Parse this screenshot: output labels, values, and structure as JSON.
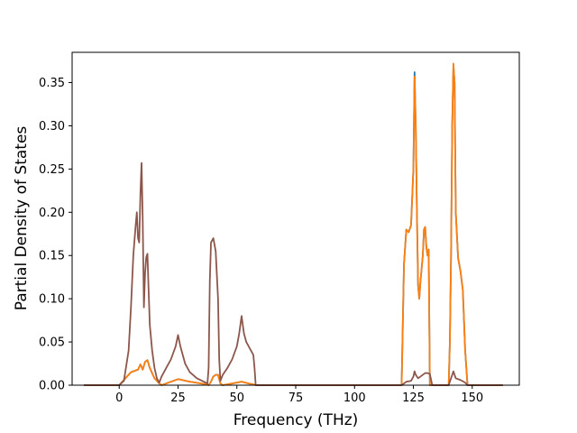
{
  "chart_data": {
    "type": "line",
    "xlabel": "Frequency (THz)",
    "ylabel": "Partial Density of States",
    "xlim": [
      -20,
      170
    ],
    "ylim": [
      0,
      0.385
    ],
    "xticks": [
      0,
      25,
      50,
      75,
      100,
      125,
      150
    ],
    "xtick_labels": [
      "0",
      "25",
      "50",
      "75",
      "100",
      "125",
      "150"
    ],
    "yticks": [
      0.0,
      0.05,
      0.1,
      0.15,
      0.2,
      0.25,
      0.3,
      0.35
    ],
    "ytick_labels": [
      "0.00",
      "0.05",
      "0.10",
      "0.15",
      "0.20",
      "0.25",
      "0.30",
      "0.35"
    ],
    "grid": false,
    "legend": "none",
    "series": [
      {
        "color": "#1f77b4",
        "points": [
          [
            -15,
            0
          ],
          [
            0,
            0
          ],
          [
            5,
            0.015
          ],
          [
            8,
            0.018
          ],
          [
            9,
            0.024
          ],
          [
            10,
            0.018
          ],
          [
            11,
            0.027
          ],
          [
            12,
            0.029
          ],
          [
            13,
            0.02
          ],
          [
            15,
            0.008
          ],
          [
            17,
            0.002
          ],
          [
            18,
            0
          ],
          [
            20,
            0.002
          ],
          [
            25,
            0.007
          ],
          [
            30,
            0.004
          ],
          [
            37,
            0.001
          ],
          [
            38,
            0
          ],
          [
            39,
            0.004
          ],
          [
            40,
            0.01
          ],
          [
            41,
            0.012
          ],
          [
            42,
            0.012
          ],
          [
            43,
            0.002
          ],
          [
            44,
            0
          ],
          [
            48,
            0.002
          ],
          [
            52,
            0.004
          ],
          [
            55,
            0.002
          ],
          [
            57,
            0.001
          ],
          [
            58,
            0
          ],
          [
            120,
            0
          ],
          [
            121,
            0.14
          ],
          [
            122,
            0.18
          ],
          [
            123,
            0.177
          ],
          [
            124,
            0.185
          ],
          [
            125,
            0.25
          ],
          [
            125.5,
            0.362
          ],
          [
            126,
            0.3
          ],
          [
            126.5,
            0.2
          ],
          [
            127,
            0.115
          ],
          [
            127.5,
            0.1
          ],
          [
            128,
            0.12
          ],
          [
            129,
            0.15
          ],
          [
            129.5,
            0.18
          ],
          [
            130,
            0.183
          ],
          [
            130.5,
            0.16
          ],
          [
            131,
            0.15
          ],
          [
            131.5,
            0.157
          ],
          [
            132,
            0
          ],
          [
            140,
            0
          ],
          [
            140.5,
            0.05
          ],
          [
            141,
            0.15
          ],
          [
            141.5,
            0.3
          ],
          [
            142,
            0.37
          ],
          [
            142.5,
            0.35
          ],
          [
            143,
            0.2
          ],
          [
            144,
            0.147
          ],
          [
            145,
            0.132
          ],
          [
            146,
            0.11
          ],
          [
            147,
            0.04
          ],
          [
            148,
            0
          ],
          [
            163,
            0
          ]
        ]
      },
      {
        "color": "#ff7f0e",
        "points": [
          [
            -15,
            0
          ],
          [
            0,
            0
          ],
          [
            5,
            0.015
          ],
          [
            8,
            0.018
          ],
          [
            9,
            0.024
          ],
          [
            10,
            0.018
          ],
          [
            11,
            0.027
          ],
          [
            12,
            0.029
          ],
          [
            13,
            0.02
          ],
          [
            15,
            0.008
          ],
          [
            17,
            0.002
          ],
          [
            18,
            0
          ],
          [
            20,
            0.002
          ],
          [
            25,
            0.007
          ],
          [
            30,
            0.004
          ],
          [
            37,
            0.001
          ],
          [
            38,
            0
          ],
          [
            39,
            0.004
          ],
          [
            40,
            0.01
          ],
          [
            41,
            0.012
          ],
          [
            42,
            0.012
          ],
          [
            43,
            0.002
          ],
          [
            44,
            0
          ],
          [
            48,
            0.002
          ],
          [
            52,
            0.004
          ],
          [
            55,
            0.002
          ],
          [
            57,
            0.001
          ],
          [
            58,
            0
          ],
          [
            120,
            0
          ],
          [
            121,
            0.14
          ],
          [
            122,
            0.18
          ],
          [
            123,
            0.177
          ],
          [
            124,
            0.185
          ],
          [
            125,
            0.25
          ],
          [
            125.5,
            0.357
          ],
          [
            126,
            0.3
          ],
          [
            126.5,
            0.2
          ],
          [
            127,
            0.115
          ],
          [
            127.5,
            0.1
          ],
          [
            128,
            0.12
          ],
          [
            129,
            0.15
          ],
          [
            129.5,
            0.18
          ],
          [
            130,
            0.183
          ],
          [
            130.5,
            0.16
          ],
          [
            131,
            0.15
          ],
          [
            131.5,
            0.157
          ],
          [
            132,
            0
          ],
          [
            140,
            0
          ],
          [
            140.5,
            0.05
          ],
          [
            141,
            0.15
          ],
          [
            141.5,
            0.3
          ],
          [
            142,
            0.372
          ],
          [
            142.5,
            0.35
          ],
          [
            143,
            0.2
          ],
          [
            144,
            0.147
          ],
          [
            145,
            0.132
          ],
          [
            146,
            0.11
          ],
          [
            147,
            0.04
          ],
          [
            148,
            0
          ],
          [
            163,
            0
          ]
        ]
      },
      {
        "color": "#8c564b",
        "points": [
          [
            -15,
            0
          ],
          [
            0,
            0
          ],
          [
            2,
            0.005
          ],
          [
            4,
            0.04
          ],
          [
            5,
            0.09
          ],
          [
            6,
            0.15
          ],
          [
            7,
            0.185
          ],
          [
            7.5,
            0.2
          ],
          [
            8,
            0.17
          ],
          [
            8.5,
            0.165
          ],
          [
            9,
            0.22
          ],
          [
            9.5,
            0.257
          ],
          [
            10,
            0.19
          ],
          [
            10.5,
            0.09
          ],
          [
            11,
            0.13
          ],
          [
            11.5,
            0.148
          ],
          [
            12,
            0.152
          ],
          [
            12.5,
            0.11
          ],
          [
            13,
            0.07
          ],
          [
            14,
            0.04
          ],
          [
            15,
            0.02
          ],
          [
            16,
            0.008
          ],
          [
            17,
            0.003
          ],
          [
            18,
            0.01
          ],
          [
            20,
            0.02
          ],
          [
            22,
            0.03
          ],
          [
            24,
            0.045
          ],
          [
            25,
            0.058
          ],
          [
            26,
            0.045
          ],
          [
            28,
            0.025
          ],
          [
            30,
            0.015
          ],
          [
            33,
            0.008
          ],
          [
            36,
            0.004
          ],
          [
            37.5,
            0.002
          ],
          [
            38,
            0.02
          ],
          [
            38.5,
            0.12
          ],
          [
            39,
            0.165
          ],
          [
            40,
            0.17
          ],
          [
            41,
            0.155
          ],
          [
            42,
            0.1
          ],
          [
            42.5,
            0.03
          ],
          [
            43,
            0.005
          ],
          [
            44,
            0.012
          ],
          [
            46,
            0.02
          ],
          [
            48,
            0.03
          ],
          [
            50,
            0.045
          ],
          [
            51,
            0.06
          ],
          [
            52,
            0.08
          ],
          [
            53,
            0.06
          ],
          [
            54,
            0.05
          ],
          [
            55,
            0.045
          ],
          [
            56,
            0.04
          ],
          [
            57,
            0.035
          ],
          [
            57.5,
            0.02
          ],
          [
            58,
            0
          ],
          [
            120,
            0
          ],
          [
            122,
            0.004
          ],
          [
            124,
            0.005
          ],
          [
            125,
            0.01
          ],
          [
            125.5,
            0.016
          ],
          [
            126,
            0.012
          ],
          [
            127,
            0.008
          ],
          [
            128,
            0.01
          ],
          [
            130,
            0.014
          ],
          [
            131,
            0.014
          ],
          [
            132,
            0.013
          ],
          [
            133,
            0
          ],
          [
            140,
            0
          ],
          [
            141,
            0.008
          ],
          [
            142,
            0.016
          ],
          [
            143,
            0.008
          ],
          [
            145,
            0.006
          ],
          [
            147,
            0.003
          ],
          [
            148,
            0
          ],
          [
            163,
            0
          ]
        ]
      }
    ]
  }
}
